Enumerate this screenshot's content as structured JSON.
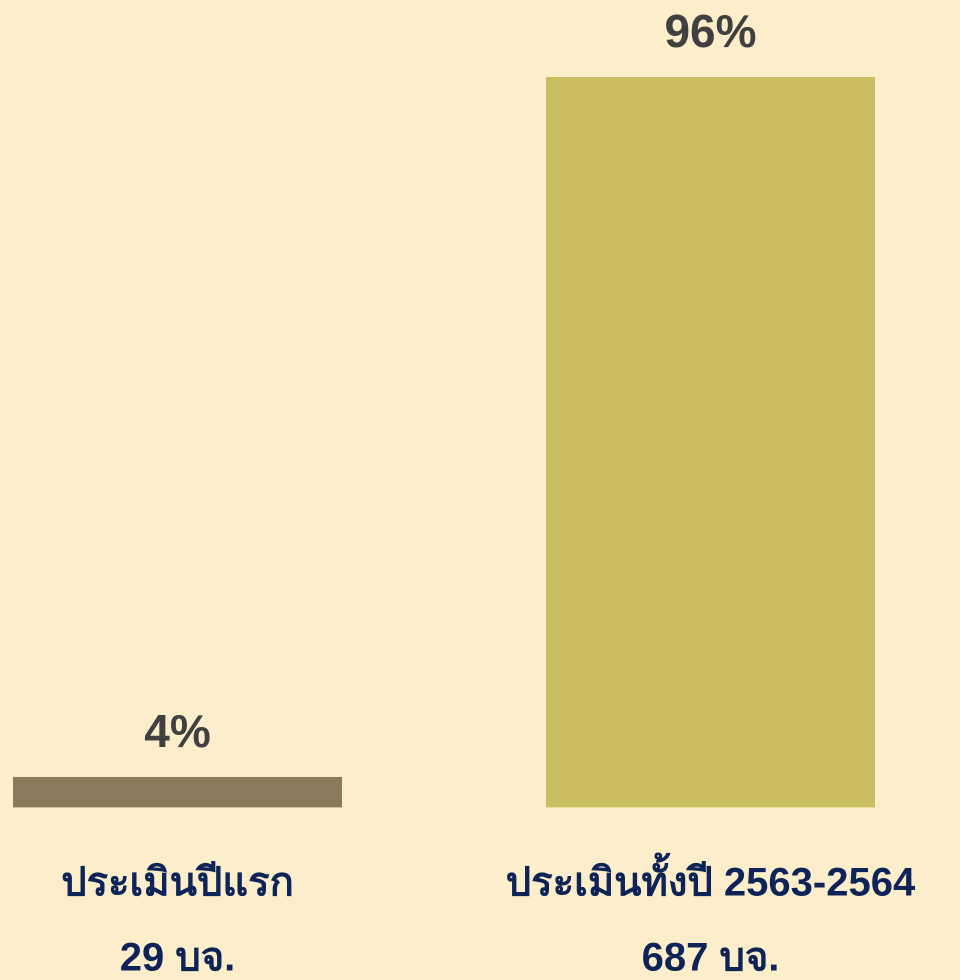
{
  "chart_data": {
    "type": "bar",
    "categories": [
      "ประเมินปีแรก",
      "ประเมินทั้งปี 2563-2564"
    ],
    "category_sublabels": [
      "29 บจ.",
      "687 บจ."
    ],
    "values": [
      4,
      96
    ],
    "value_labels": [
      "4%",
      "96%"
    ],
    "colors": [
      "#8b7a5c",
      "#cbbe62"
    ],
    "ylim": [
      -1,
      96
    ]
  }
}
